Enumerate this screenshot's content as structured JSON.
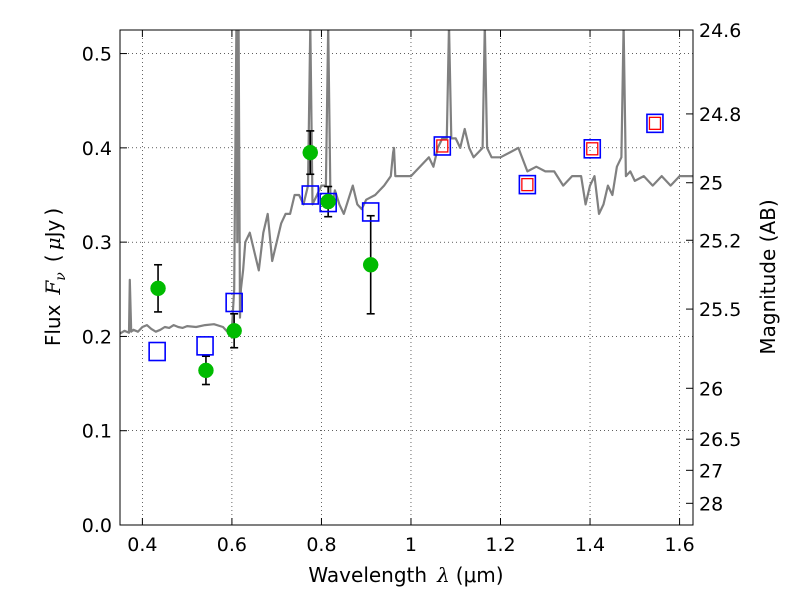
{
  "chart_data": {
    "type": "scatter",
    "xlabel": {
      "text": "Wavelength",
      "symbol": "λ",
      "unit": "(μm)"
    },
    "ylabel": {
      "text": "Flux",
      "symbol": "F",
      "subscript": "ν",
      "unit_open": "(",
      "unit_mu": "μ",
      "unit_rest": "Jy",
      "unit_close": ")"
    },
    "y2label": "Magnitude (AB)",
    "xlim": [
      0.35,
      1.63
    ],
    "ylim": [
      0.0,
      0.525
    ],
    "x_ticks": [
      0.4,
      0.6,
      0.8,
      1.0,
      1.2,
      1.4,
      1.6
    ],
    "x_tick_labels": [
      "0.4",
      "0.6",
      "0.8",
      "1",
      "1.2",
      "1.4",
      "1.6"
    ],
    "y_ticks": [
      0.0,
      0.1,
      0.2,
      0.3,
      0.4,
      0.5
    ],
    "y_tick_labels": [
      "0.0",
      "0.1",
      "0.2",
      "0.3",
      "0.4",
      "0.5"
    ],
    "y2_ticks": [
      {
        "label": "24.6",
        "flux": 0.525
      },
      {
        "label": "24.8",
        "flux": 0.436
      },
      {
        "label": "25",
        "flux": 0.363
      },
      {
        "label": "25.2",
        "flux": 0.302
      },
      {
        "label": "25.5",
        "flux": 0.229
      },
      {
        "label": "26",
        "flux": 0.145
      },
      {
        "label": "26.5",
        "flux": 0.091
      },
      {
        "label": "27",
        "flux": 0.058
      },
      {
        "label": "28",
        "flux": 0.023
      }
    ],
    "grid": true,
    "series": [
      {
        "kind": "line",
        "color": "#808080",
        "x": [
          0.35,
          0.36,
          0.37,
          0.372,
          0.375,
          0.38,
          0.39,
          0.4,
          0.41,
          0.42,
          0.43,
          0.44,
          0.45,
          0.46,
          0.47,
          0.48,
          0.49,
          0.5,
          0.52,
          0.54,
          0.56,
          0.58,
          0.59,
          0.6,
          0.605,
          0.61,
          0.612,
          0.615,
          0.618,
          0.62,
          0.625,
          0.63,
          0.64,
          0.65,
          0.66,
          0.67,
          0.68,
          0.69,
          0.7,
          0.71,
          0.72,
          0.73,
          0.74,
          0.75,
          0.76,
          0.77,
          0.775,
          0.78,
          0.79,
          0.8,
          0.81,
          0.815,
          0.82,
          0.825,
          0.83,
          0.84,
          0.85,
          0.86,
          0.87,
          0.88,
          0.89,
          0.9,
          0.92,
          0.94,
          0.955,
          0.96,
          0.962,
          0.965,
          0.97,
          0.98,
          1.0,
          1.02,
          1.04,
          1.05,
          1.06,
          1.07,
          1.08,
          1.085,
          1.09,
          1.1,
          1.11,
          1.12,
          1.13,
          1.14,
          1.15,
          1.16,
          1.165,
          1.17,
          1.18,
          1.2,
          1.22,
          1.24,
          1.26,
          1.28,
          1.3,
          1.32,
          1.34,
          1.36,
          1.38,
          1.39,
          1.4,
          1.41,
          1.42,
          1.43,
          1.44,
          1.45,
          1.46,
          1.47,
          1.475,
          1.48,
          1.49,
          1.5,
          1.52,
          1.54,
          1.56,
          1.58,
          1.6,
          1.62,
          1.63
        ],
        "y": [
          0.203,
          0.206,
          0.204,
          0.26,
          0.205,
          0.207,
          0.205,
          0.21,
          0.212,
          0.208,
          0.205,
          0.207,
          0.21,
          0.209,
          0.212,
          0.21,
          0.209,
          0.211,
          0.21,
          0.212,
          0.213,
          0.21,
          0.205,
          0.208,
          0.25,
          0.53,
          0.3,
          0.53,
          0.22,
          0.25,
          0.27,
          0.3,
          0.31,
          0.29,
          0.27,
          0.31,
          0.33,
          0.28,
          0.3,
          0.32,
          0.33,
          0.33,
          0.35,
          0.35,
          0.34,
          0.36,
          0.53,
          0.34,
          0.35,
          0.36,
          0.36,
          0.53,
          0.35,
          0.34,
          0.355,
          0.34,
          0.33,
          0.345,
          0.36,
          0.34,
          0.335,
          0.345,
          0.35,
          0.36,
          0.37,
          0.395,
          0.4,
          0.37,
          0.37,
          0.37,
          0.37,
          0.38,
          0.39,
          0.38,
          0.4,
          0.41,
          0.41,
          0.53,
          0.41,
          0.41,
          0.4,
          0.42,
          0.4,
          0.39,
          0.395,
          0.4,
          0.53,
          0.4,
          0.39,
          0.39,
          0.395,
          0.4,
          0.375,
          0.38,
          0.375,
          0.375,
          0.36,
          0.37,
          0.37,
          0.34,
          0.36,
          0.37,
          0.33,
          0.34,
          0.36,
          0.35,
          0.38,
          0.39,
          0.53,
          0.37,
          0.375,
          0.365,
          0.37,
          0.36,
          0.37,
          0.36,
          0.37,
          0.37,
          0.37
        ]
      },
      {
        "kind": "points-with-errorbars",
        "color": "#00bb00",
        "x": [
          0.435,
          0.542,
          0.605,
          0.775,
          0.815,
          0.91
        ],
        "y": [
          0.251,
          0.164,
          0.206,
          0.395,
          0.343,
          0.276
        ],
        "yerr": [
          0.025,
          0.015,
          0.018,
          0.023,
          0.016,
          0.052
        ]
      },
      {
        "kind": "open-squares",
        "color": "#0000ff",
        "x": [
          0.433,
          0.54,
          0.605,
          0.775,
          0.815,
          0.91,
          1.07,
          1.26,
          1.405,
          1.545
        ],
        "y": [
          0.184,
          0.19,
          0.236,
          0.35,
          0.342,
          0.332,
          0.402,
          0.361,
          0.399,
          0.426
        ]
      },
      {
        "kind": "small-open-squares",
        "color": "#ff0000",
        "x": [
          1.07,
          1.26,
          1.405,
          1.545
        ],
        "y": [
          0.402,
          0.361,
          0.399,
          0.426
        ]
      }
    ]
  }
}
